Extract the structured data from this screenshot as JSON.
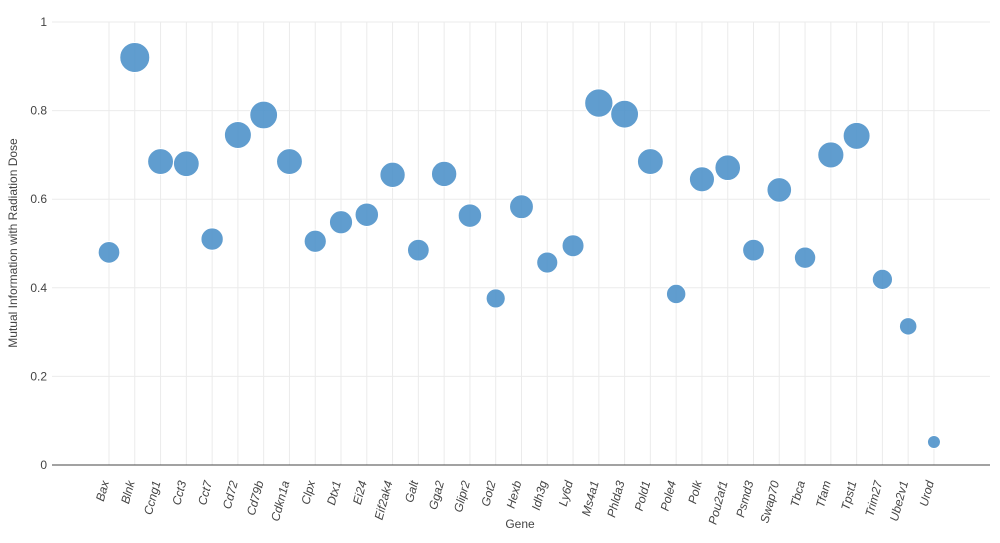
{
  "chart_data": {
    "type": "scatter",
    "xlabel": "Gene",
    "ylabel": "Mutual Information with Radiation Dose",
    "ylim": [
      0,
      1
    ],
    "yticks": [
      "0",
      "0.2",
      "0.4",
      "0.6",
      "0.8",
      "1"
    ],
    "grid": true,
    "marker_color": "#4a90c8",
    "categories": [
      "Bax",
      "Blnk",
      "Ccng1",
      "Cct3",
      "Cct7",
      "Cd72",
      "Cd79b",
      "Cdkn1a",
      "Clpx",
      "Dtx1",
      "Ei24",
      "Eif2ak4",
      "Galt",
      "Gga2",
      "Glipr2",
      "Got2",
      "Hexb",
      "Idh3g",
      "Ly6d",
      "Ms4a1",
      "Phlda3",
      "Pold1",
      "Pole4",
      "Polk",
      "Pou2af1",
      "Psmd3",
      "Swap70",
      "Tbca",
      "Tfam",
      "Tpst1",
      "Trim27",
      "Ube2v1",
      "Urod"
    ],
    "values": [
      0.48,
      0.92,
      0.685,
      0.68,
      0.51,
      0.745,
      0.79,
      0.685,
      0.505,
      0.548,
      0.565,
      0.655,
      0.485,
      0.657,
      0.563,
      0.376,
      0.583,
      0.457,
      0.495,
      0.817,
      0.792,
      0.685,
      0.386,
      0.645,
      0.671,
      0.485,
      0.621,
      0.468,
      0.7,
      0.743,
      0.419,
      0.313,
      0.052
    ],
    "sizes": [
      0.48,
      0.92,
      0.685,
      0.68,
      0.51,
      0.745,
      0.79,
      0.685,
      0.505,
      0.548,
      0.565,
      0.655,
      0.485,
      0.657,
      0.563,
      0.376,
      0.583,
      0.457,
      0.495,
      0.817,
      0.792,
      0.685,
      0.386,
      0.645,
      0.671,
      0.485,
      0.621,
      0.468,
      0.7,
      0.743,
      0.419,
      0.313,
      0.052
    ]
  }
}
